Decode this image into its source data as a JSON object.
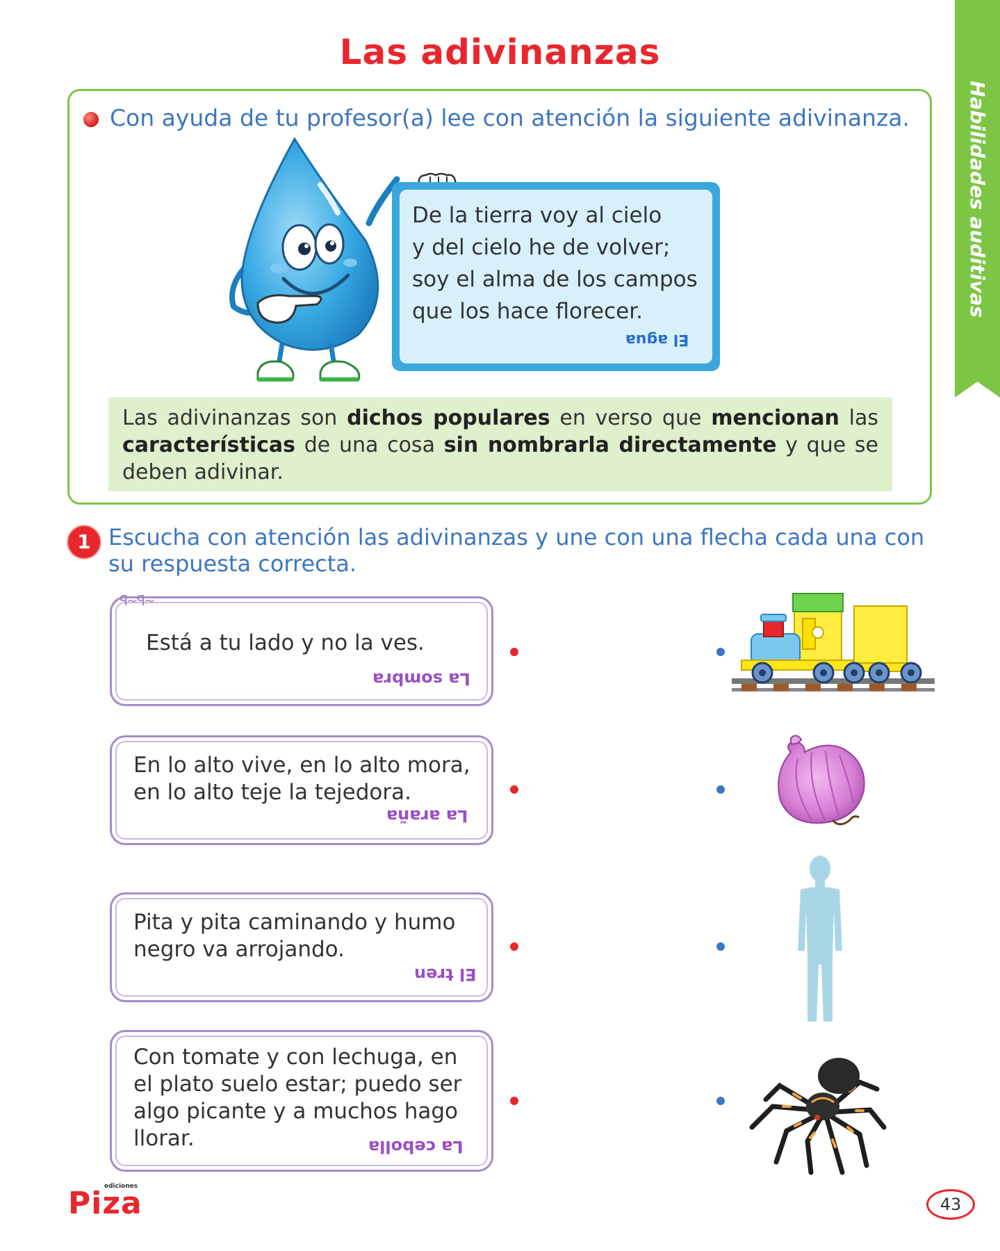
{
  "page": {
    "title": "Las adivinanzas",
    "side_tab": "Habilidades auditivas",
    "page_number": "43"
  },
  "intro": {
    "instruction": "Con ayuda de tu profesor(a) lee con atención la siguiente adivinanza.",
    "riddle_lines": [
      "De la tierra voy al cielo",
      "y del cielo he de volver;",
      "soy el alma de los campos",
      "que los hace florecer."
    ],
    "riddle_answer": "El agua",
    "definition": {
      "t1": "Las adivinanzas son ",
      "b1": "dichos populares",
      "t2": " en verso que ",
      "b2": "mencionan",
      "t3": " las ",
      "b3": "características",
      "t4": " de una cosa ",
      "b4": "sin nombrarla directamente",
      "t5": " y que se deben adivinar."
    }
  },
  "exercise": {
    "number": "1",
    "instruction": "Escucha con atención las adivinanzas y une con una flecha cada una con su respuesta correcta.",
    "riddles": [
      {
        "text": "Está a tu lado y no la ves.",
        "answer": "La sombra"
      },
      {
        "text": "En lo alto vive, en lo alto mora, en lo alto teje la tejedora.",
        "answer": "La araña"
      },
      {
        "text": "Pita y pita caminando y humo negro va arrojando.",
        "answer": "El tren"
      },
      {
        "text": "Con tomate y con lechuga, en el plato suelo estar; puedo ser algo picante y a muchos hago llorar.",
        "answer": "La cebolla"
      }
    ],
    "images": [
      "toy-train",
      "onion",
      "person-silhouette",
      "spider"
    ]
  },
  "footer": {
    "publisher": "Piza",
    "publisher_small": "ediciones"
  },
  "colors": {
    "title_red": "#e8272d",
    "accent_green": "#7cc545",
    "accent_blue": "#3d76c1",
    "frame_purple": "#a58cc8",
    "card_blue": "#3aa8dd"
  }
}
